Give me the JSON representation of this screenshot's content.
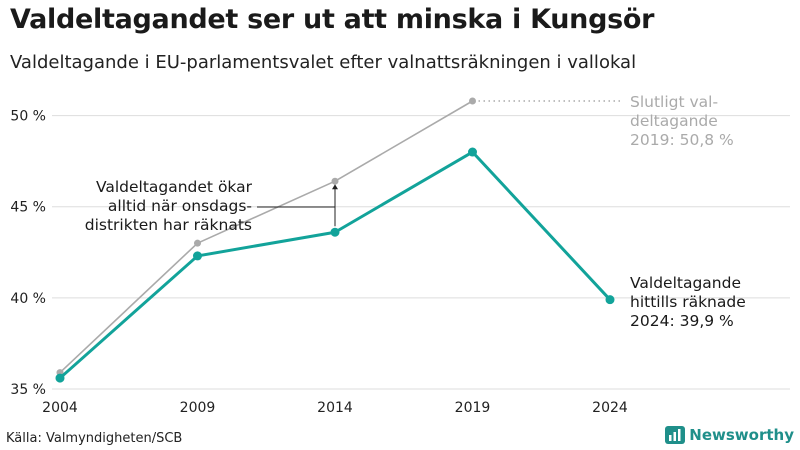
{
  "title": "Valdeltagandet ser ut att minska i Kungsör",
  "subtitle": "Valdeltagande i EU-parlamentsvalet efter valnattsräkningen i vallokal",
  "source": "Källa: Valmyndigheten/SCB",
  "brand": {
    "name": "Newsworthy",
    "icon": "newsworthy-logo-icon",
    "color": "#1f8f8a"
  },
  "colors": {
    "preliminary": "#12a39a",
    "final": "#aaaaaa",
    "grid": "#dddddd",
    "final_label": "#aaaaaa"
  },
  "chart_data": {
    "type": "line",
    "categories": [
      "2004",
      "2009",
      "2014",
      "2019",
      "2024"
    ],
    "ylim": [
      35,
      50.8
    ],
    "yticks": [
      35,
      40,
      45,
      50
    ],
    "ytick_labels": [
      "35 %",
      "40 %",
      "45 %",
      "50 %"
    ],
    "series": [
      {
        "name": "Slutligt valdeltagande",
        "values": [
          35.9,
          43.0,
          46.4,
          50.8,
          null
        ]
      },
      {
        "name": "Valdeltagande hittills räknade",
        "values": [
          35.6,
          42.3,
          43.6,
          48.0,
          39.9
        ]
      }
    ],
    "annotations": {
      "final_label": [
        "Slutligt val-",
        "deltagande",
        "2019: 50,8 %"
      ],
      "prelim_label": [
        "Valdeltagande",
        "hittills räknade",
        "2024: 39,9 %"
      ],
      "gap_note": [
        "Valdeltagandet ökar",
        "alltid när onsdags-",
        "distrikten har räknats"
      ]
    }
  }
}
